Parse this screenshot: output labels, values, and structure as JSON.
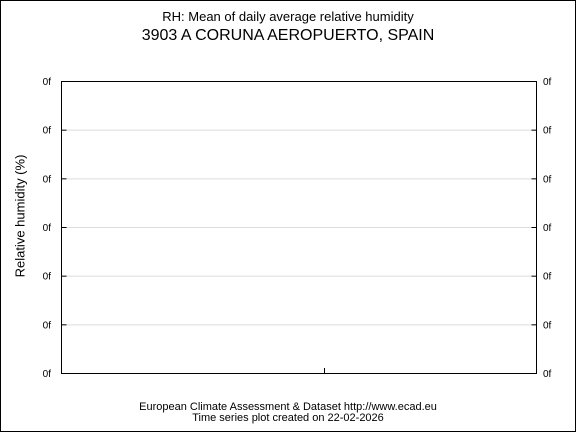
{
  "chart_data": {
    "type": "line",
    "title": "RH: Mean of daily average relative humidity",
    "subtitle": "3903 A CORUNA AEROPUERTO, SPAIN",
    "ylabel": "Relative humidity (%)",
    "yticks": [
      "0f",
      "0f",
      "0f",
      "0f",
      "0f",
      "0f",
      "0f"
    ],
    "grid": true,
    "series": []
  },
  "footer": {
    "line1": "European Climate Assessment & Dataset  http://www.ecad.eu",
    "line2": "Time series plot created on 22-02-2026"
  }
}
